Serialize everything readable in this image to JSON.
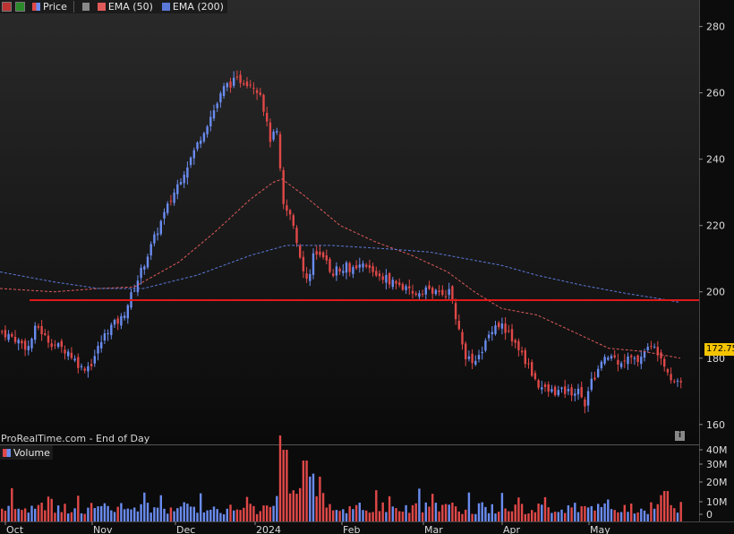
{
  "toolbar": {
    "price_label": "Price",
    "ema50_label": "EMA (50)",
    "ema200_label": "EMA (200)"
  },
  "footer": {
    "credit": "ProRealTime.com - End of Day",
    "volume_label": "Volume"
  },
  "colors": {
    "up": "#6a8cf0",
    "down": "#e04848",
    "ema50": "#e05a5a",
    "ema200": "#5a78d8",
    "support": "#e01818",
    "price_tag": "#f5c400"
  },
  "chart_data": {
    "type": "candlestick",
    "y_ticks": [
      "280",
      "260",
      "240",
      "220",
      "200",
      "180",
      "160"
    ],
    "ylim": [
      154,
      288
    ],
    "x_ticks": [
      "Oct",
      "Nov",
      "Dec",
      "2024",
      "Feb",
      "Mar",
      "Apr",
      "May"
    ],
    "volume_ticks": [
      "40M",
      "30M",
      "20M",
      "10M",
      "0"
    ],
    "last_price": "172.75",
    "support_level": 197.5
  }
}
